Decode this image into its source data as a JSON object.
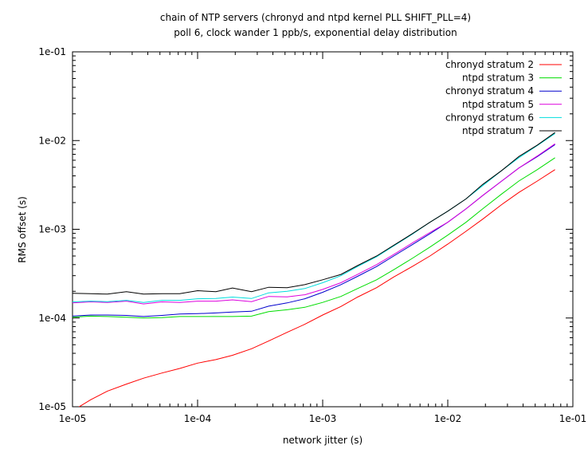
{
  "chart_data": {
    "type": "line",
    "title": "chain of NTP servers (chronyd and ntpd kernel PLL SHIFT_PLL=4)",
    "subtitle": "poll 6, clock wander 1 ppb/s, exponential delay distribution",
    "xlabel": "network jitter (s)",
    "ylabel": "RMS offset (s)",
    "xscale": "log",
    "yscale": "log",
    "xlim": [
      1e-05,
      0.1
    ],
    "ylim": [
      1e-05,
      0.1
    ],
    "xticks": [
      "1e-05",
      "1e-04",
      "1e-03",
      "1e-02",
      "1e-01"
    ],
    "yticks": [
      "1e-05",
      "1e-04",
      "1e-03",
      "1e-02",
      "1e-01"
    ],
    "grid": false,
    "legend_position": "top-right",
    "colors": {
      "chronyd stratum 2": "#ff0000",
      "ntpd stratum 3": "#00dd00",
      "chronyd stratum 4": "#0000cc",
      "ntpd stratum 5": "#dd00dd",
      "chronyd stratum 6": "#00dddd",
      "ntpd stratum 7": "#000000"
    },
    "x": [
      1e-05,
      1.4e-05,
      1.9e-05,
      2.7e-05,
      3.7e-05,
      5.2e-05,
      7.2e-05,
      0.0001,
      0.00014,
      0.00019,
      0.00027,
      0.00037,
      0.00052,
      0.00072,
      0.001,
      0.0014,
      0.0019,
      0.0027,
      0.0037,
      0.0052,
      0.0072,
      0.01,
      0.014,
      0.019,
      0.027,
      0.037,
      0.052,
      0.072
    ],
    "series": [
      {
        "name": "chronyd stratum 2",
        "values": [
          9e-06,
          1.2e-05,
          1.5e-05,
          1.8e-05,
          2.1e-05,
          2.4e-05,
          2.7e-05,
          3.1e-05,
          3.4e-05,
          3.8e-05,
          4.5e-05,
          5.5e-05,
          6.9e-05,
          8.5e-05,
          0.000108,
          0.000135,
          0.000172,
          0.00022,
          0.00029,
          0.00038,
          0.0005,
          0.00068,
          0.00095,
          0.0013,
          0.0019,
          0.0026,
          0.0035,
          0.0047
        ]
      },
      {
        "name": "ntpd stratum 3",
        "values": [
          0.000102,
          0.000105,
          0.000104,
          0.000102,
          0.0001,
          0.000101,
          0.000104,
          0.000104,
          0.000104,
          0.000104,
          0.000105,
          0.000118,
          0.000124,
          0.000132,
          0.00015,
          0.000175,
          0.000215,
          0.00027,
          0.00035,
          0.00047,
          0.00063,
          0.00086,
          0.0012,
          0.0017,
          0.0025,
          0.0035,
          0.0047,
          0.0064
        ]
      },
      {
        "name": "chronyd stratum 4",
        "values": [
          0.000105,
          0.000108,
          0.000108,
          0.000107,
          0.000104,
          0.000107,
          0.000111,
          0.000112,
          0.000114,
          0.000117,
          0.000119,
          0.000136,
          0.000148,
          0.000165,
          0.000195,
          0.000238,
          0.000295,
          0.00038,
          0.0005,
          0.00067,
          0.00089,
          0.0012,
          0.0017,
          0.0024,
          0.0035,
          0.0049,
          0.0066,
          0.009
        ]
      },
      {
        "name": "ntpd stratum 5",
        "values": [
          0.000148,
          0.000152,
          0.00015,
          0.000155,
          0.000144,
          0.000152,
          0.00015,
          0.000155,
          0.000155,
          0.00016,
          0.000153,
          0.000175,
          0.000173,
          0.000183,
          0.00021,
          0.00025,
          0.00031,
          0.0004,
          0.00052,
          0.0007,
          0.00092,
          0.0012,
          0.0017,
          0.0024,
          0.0035,
          0.0049,
          0.0067,
          0.0092
        ]
      },
      {
        "name": "chronyd stratum 6",
        "values": [
          0.000152,
          0.000155,
          0.000153,
          0.000158,
          0.00015,
          0.000158,
          0.000158,
          0.000165,
          0.000166,
          0.000172,
          0.000166,
          0.000192,
          0.0002,
          0.000215,
          0.00025,
          0.0003,
          0.00038,
          0.00049,
          0.00065,
          0.00088,
          0.0012,
          0.0016,
          0.0022,
          0.0031,
          0.0046,
          0.0064,
          0.0088,
          0.012
        ]
      },
      {
        "name": "ntpd stratum 7",
        "values": [
          0.00019,
          0.000188,
          0.000186,
          0.000198,
          0.000186,
          0.000188,
          0.000188,
          0.000203,
          0.000198,
          0.000218,
          0.000198,
          0.000222,
          0.00022,
          0.000238,
          0.00027,
          0.00031,
          0.00039,
          0.0005,
          0.00066,
          0.00089,
          0.0012,
          0.0016,
          0.0022,
          0.0032,
          0.0046,
          0.0066,
          0.0089,
          0.0123
        ]
      }
    ]
  }
}
